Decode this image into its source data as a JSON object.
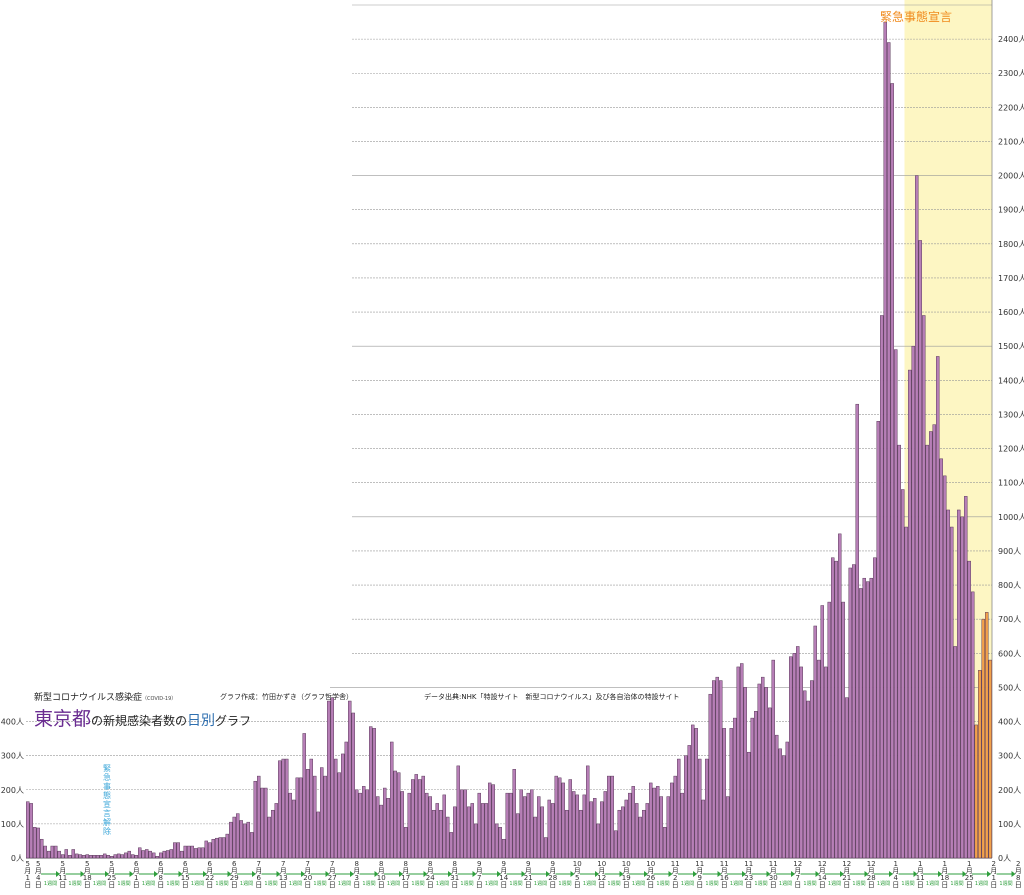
{
  "header": {
    "subtitle": "新型コロナウイルス感染症",
    "subtitle_small": "（COVID-19）",
    "author": "グラフ作成：竹田かずき（グラフ哲学舎）",
    "source": "データ出典:NHK「特設サイト　新型コロナウイルス」及び各自治体の特設サイト",
    "title_part1": "東京都",
    "title_part2": "の新規感染者数の",
    "title_part3": "日別",
    "title_part4": "グラフ"
  },
  "annotations": {
    "emergency_declaration": "緊急事態宣言",
    "emergency_lifted": "緊急事態宣言解除"
  },
  "colors": {
    "bar": "#b77fb7",
    "bar_highlight": "#f2a24b",
    "emergency_band": "#fdf6c3",
    "grid": "#999999",
    "arrow": "#2e9e3c",
    "emergency_text": "#f08a1c",
    "lift_text": "#3aa6d8"
  },
  "chart_data": {
    "type": "bar",
    "unit": "人",
    "ylim": [
      0,
      2500
    ],
    "y_tick_step": 100,
    "grid": true,
    "y_tick_labels_right": [
      "0人",
      "100人",
      "200人",
      "300人",
      "400人",
      "500人",
      "600人",
      "700人",
      "800人",
      "900人",
      "1000人",
      "1100人",
      "1200人",
      "1300人",
      "1400人",
      "1500人",
      "1600人",
      "1700人",
      "1800人",
      "1900人",
      "2000人",
      "2100人",
      "2200人",
      "2300人",
      "2400人"
    ],
    "y_tick_labels_left": [
      "0人",
      "100人",
      "200人",
      "300人",
      "400人"
    ],
    "x_tick_labels": [
      "5月1日",
      "5月4日",
      "5月11日",
      "5月18日",
      "5月25日",
      "6月1日",
      "6月8日",
      "6月15日",
      "6月22日",
      "6月29日",
      "7月6日",
      "7月13日",
      "7月20日",
      "7月27日",
      "8月3日",
      "8月10日",
      "8月17日",
      "8月24日",
      "8月31日",
      "9月7日",
      "9月14日",
      "9月21日",
      "9月28日",
      "10月5日",
      "10月12日",
      "10月19日",
      "10月26日",
      "11月2日",
      "11月9日",
      "11月16日",
      "11月23日",
      "11月30日",
      "12月7日",
      "12月14日",
      "12月21日",
      "12月28日",
      "1月4日",
      "1月11日",
      "1月18日",
      "1月25日",
      "2月1日",
      "2月8日"
    ],
    "week_label": "1週間",
    "series": [
      {
        "values": [
          165,
          160,
          90,
          88,
          55,
          35,
          20,
          35,
          35,
          20,
          10,
          25,
          8,
          25,
          12,
          10,
          8,
          10,
          8,
          8,
          8,
          8,
          12,
          8,
          5,
          10,
          12,
          10,
          15,
          20,
          10,
          8,
          30,
          22,
          25,
          20,
          15,
          5,
          15,
          20,
          22,
          25,
          45,
          45,
          20,
          35,
          35,
          35,
          28,
          30,
          30,
          50,
          45,
          55,
          58,
          60,
          60,
          70,
          105,
          120,
          130,
          110,
          100,
          105,
          75,
          225,
          240,
          205,
          205,
          120,
          140,
          160,
          285,
          290,
          290,
          190,
          170,
          235,
          235,
          365,
          260,
          290,
          240,
          135,
          265,
          240,
          460,
          470,
          290,
          250,
          305,
          340,
          460,
          425,
          200,
          190,
          210,
          200,
          385,
          380,
          180,
          155,
          205,
          175,
          340,
          255,
          250,
          195,
          90,
          190,
          230,
          245,
          230,
          240,
          190,
          180,
          140,
          160,
          140,
          185,
          120,
          75,
          150,
          270,
          200,
          200,
          150,
          160,
          100,
          190,
          160,
          160,
          220,
          215,
          100,
          90,
          55,
          190,
          190,
          260,
          130,
          200,
          180,
          190,
          200,
          120,
          180,
          150,
          60,
          170,
          160,
          240,
          235,
          220,
          140,
          230,
          195,
          185,
          140,
          185,
          270,
          165,
          175,
          100,
          165,
          195,
          240,
          240,
          80,
          140,
          150,
          170,
          190,
          210,
          160,
          120,
          140,
          160,
          220,
          205,
          210,
          180,
          90,
          180,
          220,
          240,
          290,
          190,
          300,
          330,
          390,
          380,
          290,
          170,
          290,
          480,
          520,
          530,
          520,
          380,
          180,
          380,
          410,
          560,
          570,
          500,
          310,
          410,
          430,
          510,
          530,
          500,
          440,
          580,
          360,
          320,
          300,
          340,
          590,
          600,
          620,
          560,
          490,
          460,
          520,
          680,
          580,
          740,
          560,
          750,
          880,
          870,
          950,
          750,
          470,
          850,
          860,
          1330,
          790,
          820,
          810,
          820,
          880,
          1280,
          1590,
          2450,
          2390,
          2270,
          1490,
          1210,
          1080,
          970,
          1430,
          1500,
          2000,
          1810,
          1590,
          1210,
          1250,
          1270,
          1470,
          1170,
          1120,
          1020,
          970,
          620,
          1020,
          1000,
          1060,
          870,
          780,
          390,
          550,
          700,
          720,
          580
        ]
      }
    ],
    "highlight_tail_from_index": 271
  }
}
